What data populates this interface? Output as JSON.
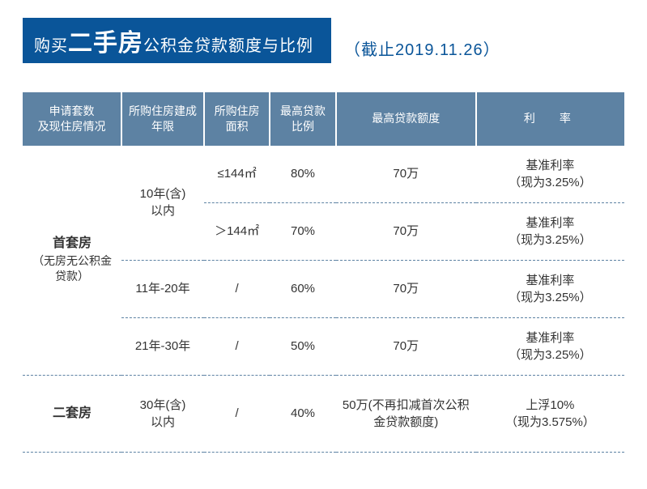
{
  "colors": {
    "banner_bg": "#0a5599",
    "header_bg": "#5d82a3",
    "text": "#333333",
    "accent": "#0a5599",
    "dash": "#5d82a3",
    "white": "#ffffff"
  },
  "header": {
    "title_parts": {
      "p1": "购买",
      "p2": "二手房",
      "p3": "公积金贷款额度与比例"
    },
    "cutoff": "（截止2019.11.26）"
  },
  "table": {
    "columns": [
      "申请套数\n及现住房情况",
      "所购住房建成年限",
      "所购住房面积",
      "最高贷款比例",
      "最高贷款额度",
      "利　率"
    ],
    "groups": [
      {
        "label_main": "首套房",
        "label_sub": "（无房无公积金贷款）",
        "rows": [
          {
            "age": "10年(含)\n以内",
            "area": "≤144㎡",
            "ratio": "80%",
            "amount": "70万",
            "rate_l1": "基准利率",
            "rate_l2": "（现为3.25%）",
            "age_rowspan": 2
          },
          {
            "age": null,
            "area": "＞144㎡",
            "ratio": "70%",
            "amount": "70万",
            "rate_l1": "基准利率",
            "rate_l2": "（现为3.25%）"
          },
          {
            "age": "11年-20年",
            "area": "/",
            "ratio": "60%",
            "amount": "70万",
            "rate_l1": "基准利率",
            "rate_l2": "（现为3.25%）"
          },
          {
            "age": "21年-30年",
            "area": "/",
            "ratio": "50%",
            "amount": "70万",
            "rate_l1": "基准利率",
            "rate_l2": "（现为3.25%）"
          }
        ]
      },
      {
        "label_main": "二套房",
        "label_sub": "",
        "rows": [
          {
            "age": "30年(含)\n以内",
            "area": "/",
            "ratio": "40%",
            "amount": "50万(不再扣减首次公积金贷款额度)",
            "rate_l1": "上浮10%",
            "rate_l2": "（现为3.575%）"
          }
        ]
      }
    ]
  }
}
